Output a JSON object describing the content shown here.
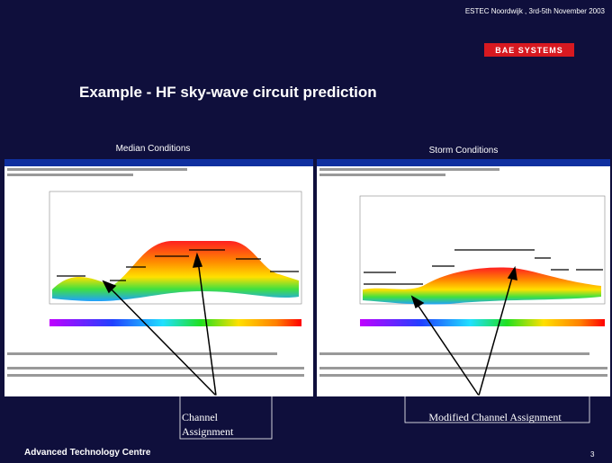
{
  "header": {
    "event": "ESTEC Noordwijk , 3rd-5th November 2003",
    "logo": "BAE SYSTEMS",
    "title": "Example - HF sky-wave circuit prediction"
  },
  "panels": [
    {
      "label": "Median Conditions"
    },
    {
      "label": "Storm Conditions"
    }
  ],
  "annotations": [
    "Channel Assignment",
    "Modified Channel Assignment"
  ],
  "footer": {
    "left": "Advanced Technology Centre",
    "page": "3"
  }
}
